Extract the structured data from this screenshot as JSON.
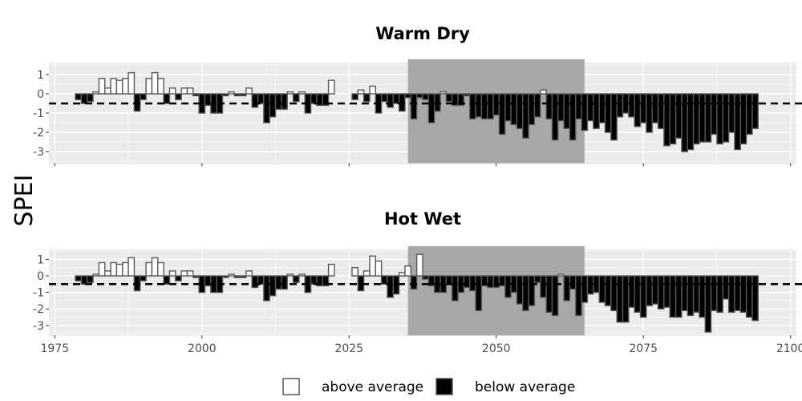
{
  "chart_data": {
    "type": "bar",
    "ylabel": "SPEI",
    "xlim": [
      1974,
      2101
    ],
    "ylim": [
      -3.6,
      1.8
    ],
    "x_ticks": [
      1975,
      2000,
      2025,
      2050,
      2075,
      2100
    ],
    "y_ticks": [
      1,
      0,
      -1,
      -2,
      -3
    ],
    "threshold_line": -0.5,
    "highlight_period": [
      2035,
      2065
    ],
    "grid": true,
    "legend": {
      "position": "bottom",
      "entries": [
        {
          "label": "above average",
          "fill": "#ffffff"
        },
        {
          "label": "below average",
          "fill": "#000000"
        }
      ]
    },
    "colors": {
      "above": "#ffffff",
      "below": "#000000",
      "bar_edge": "#595959",
      "panel_bg": "#ebebeb",
      "highlight": "#a8a8a8",
      "gridline": "#ffffff",
      "threshold": "#000000"
    },
    "panels": [
      {
        "title": "Warm Dry",
        "segments": [
          {
            "start_year": 1979,
            "values": [
              -0.3,
              -0.5,
              -0.4,
              0.1,
              0.8,
              0.3,
              0.8,
              0.7,
              0.8,
              1.1,
              -0.9,
              -0.3,
              0.8,
              1.1,
              0.8,
              -0.5,
              0.3,
              -0.3,
              0.3,
              0.3,
              -0.1,
              -1.0,
              -0.6,
              -1.0,
              -1.0,
              -0.1,
              0.1,
              -0.1,
              -0.1,
              0.3,
              -0.7,
              -0.5,
              -1.5,
              -1.2,
              -0.8,
              -0.8,
              0.1,
              -0.4,
              0.1,
              -1.0,
              -0.5,
              -0.6,
              -0.6,
              0.7
            ]
          },
          {
            "start_year": 2026,
            "values": [
              -0.3,
              0.2,
              -0.4,
              0.4,
              -1.0,
              -0.4,
              -0.7,
              -0.5,
              -0.9,
              -0.2,
              -1.3,
              -0.2,
              -0.3,
              -1.5,
              -0.9,
              0.1,
              -0.4,
              -0.6,
              -0.6,
              -0.1,
              -1.3,
              -1.2,
              -1.3,
              -1.3,
              -1.1,
              -2.1,
              -1.4,
              -1.6,
              -1.8,
              -2.3,
              -1.6,
              -1.2,
              0.2,
              -1.3,
              -2.4,
              -1.4,
              -1.8,
              -2.4,
              -1.3,
              -1.9,
              -1.4,
              -1.8,
              -1.5,
              -2.0,
              -2.4,
              -1.2,
              -1.0,
              -1.2,
              -1.7,
              -1.5,
              -2.0,
              -1.5,
              -1.8,
              -2.7,
              -2.6,
              -2.3,
              -3.0,
              -2.9,
              -2.6,
              -2.5,
              -2.5,
              -2.1,
              -2.6,
              -2.5,
              -2.0,
              -2.9,
              -2.6,
              -2.1,
              -1.8
            ]
          }
        ]
      },
      {
        "title": "Hot Wet",
        "segments": [
          {
            "start_year": 1979,
            "values": [
              -0.3,
              -0.5,
              -0.4,
              0.1,
              0.8,
              0.3,
              0.8,
              0.7,
              0.8,
              1.1,
              -0.9,
              -0.3,
              0.8,
              1.1,
              0.8,
              -0.5,
              0.3,
              -0.3,
              0.3,
              0.3,
              -0.1,
              -1.0,
              -0.6,
              -1.0,
              -1.0,
              -0.1,
              0.1,
              -0.1,
              -0.1,
              0.3,
              -0.7,
              -0.5,
              -1.5,
              -1.2,
              -0.8,
              -0.8,
              0.1,
              -0.4,
              0.1,
              -1.0,
              -0.5,
              -0.6,
              -0.6,
              0.7
            ]
          },
          {
            "start_year": 2026,
            "values": [
              0.5,
              -0.9,
              0.3,
              1.2,
              0.9,
              -0.5,
              -1.3,
              -1.1,
              0.2,
              0.6,
              -0.8,
              1.3,
              -0.2,
              -0.6,
              -1.0,
              -1.0,
              -0.5,
              -1.5,
              -1.0,
              -0.7,
              -0.9,
              -2.1,
              -0.6,
              -0.7,
              -0.7,
              -0.6,
              -1.3,
              -1.0,
              -1.7,
              -2.1,
              -1.8,
              -0.4,
              -1.3,
              -2.2,
              -2.4,
              0.1,
              -1.5,
              -0.8,
              -2.4,
              -1.6,
              -1.1,
              -1.0,
              -1.6,
              -1.8,
              -2.1,
              -2.8,
              -2.8,
              -1.9,
              -2.2,
              -2.5,
              -1.8,
              -1.7,
              -2.0,
              -1.9,
              -2.5,
              -2.5,
              -2.1,
              -2.4,
              -2.2,
              -2.5,
              -3.4,
              -2.1,
              -2.2,
              -1.4,
              -2.2,
              -2.1,
              -2.2,
              -2.5,
              -2.7
            ]
          }
        ]
      }
    ]
  }
}
